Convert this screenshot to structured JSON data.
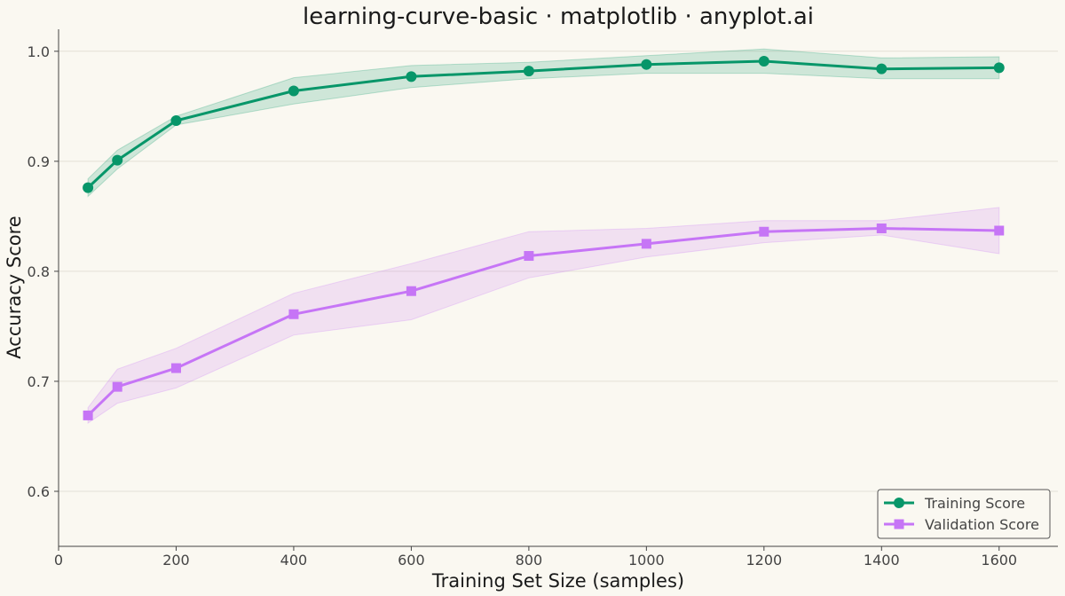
{
  "chart_data": {
    "type": "line",
    "title": "learning-curve-basic · matplotlib · anyplot.ai",
    "xlabel": "Training Set Size (samples)",
    "ylabel": "Accuracy Score",
    "xlim": [
      0,
      1700
    ],
    "ylim": [
      0.55,
      1.02
    ],
    "xticks": [
      0,
      200,
      400,
      600,
      800,
      1000,
      1200,
      1400,
      1600
    ],
    "yticks": [
      0.6,
      0.7,
      0.8,
      0.9,
      1.0
    ],
    "ytick_labels": [
      "0.6",
      "0.7",
      "0.8",
      "0.9",
      "1.0"
    ],
    "grid": "horizontal",
    "legend_position": "bottom-right",
    "x": [
      50,
      100,
      200,
      400,
      600,
      800,
      1000,
      1200,
      1400,
      1600
    ],
    "series": [
      {
        "name": "Training Score",
        "color": "#079669",
        "marker": "circle",
        "values": [
          0.876,
          0.901,
          0.937,
          0.964,
          0.977,
          0.982,
          0.988,
          0.991,
          0.984,
          0.985
        ],
        "lower": [
          0.868,
          0.893,
          0.933,
          0.952,
          0.967,
          0.975,
          0.98,
          0.98,
          0.975,
          0.975
        ],
        "upper": [
          0.884,
          0.91,
          0.941,
          0.976,
          0.987,
          0.99,
          0.996,
          1.002,
          0.994,
          0.995
        ]
      },
      {
        "name": "Validation Score",
        "color": "#c675f6",
        "marker": "square",
        "values": [
          0.669,
          0.695,
          0.712,
          0.761,
          0.782,
          0.814,
          0.825,
          0.836,
          0.839,
          0.837
        ],
        "lower": [
          0.662,
          0.68,
          0.694,
          0.742,
          0.756,
          0.794,
          0.813,
          0.826,
          0.833,
          0.816
        ],
        "upper": [
          0.676,
          0.711,
          0.73,
          0.78,
          0.807,
          0.836,
          0.839,
          0.846,
          0.846,
          0.858
        ]
      }
    ]
  }
}
